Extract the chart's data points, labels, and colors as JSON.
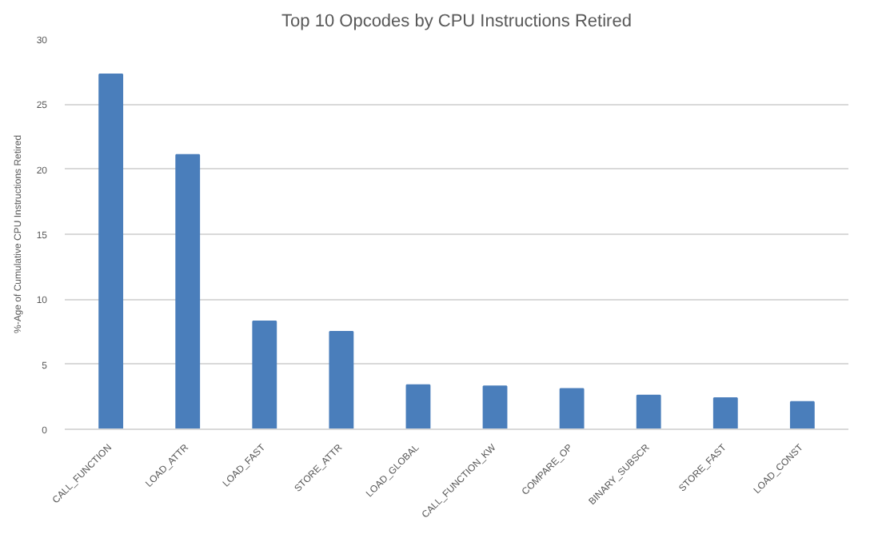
{
  "chart_data": {
    "type": "bar",
    "title": "Top 10 Opcodes by CPU Instructions Retired",
    "ylabel": "%-Age of Cumulative CPU Instructions Retired",
    "categories": [
      "CALL_FUNCTION",
      "LOAD_ATTR",
      "LOAD_FAST",
      "STORE_ATTR",
      "LOAD_GLOBAL",
      "CALL_FUNCTION_KW",
      "COMPARE_OP",
      "BINARY_SUBSCR",
      "STORE_FAST",
      "LOAD_CONST"
    ],
    "values": [
      27.3,
      21.1,
      8.3,
      7.5,
      3.4,
      3.3,
      3.1,
      2.6,
      2.4,
      2.1
    ],
    "color": "#4a7ebb",
    "ylim": [
      0,
      30
    ],
    "yticks": [
      0,
      5,
      10,
      15,
      20,
      25,
      30
    ],
    "grid": "y"
  }
}
